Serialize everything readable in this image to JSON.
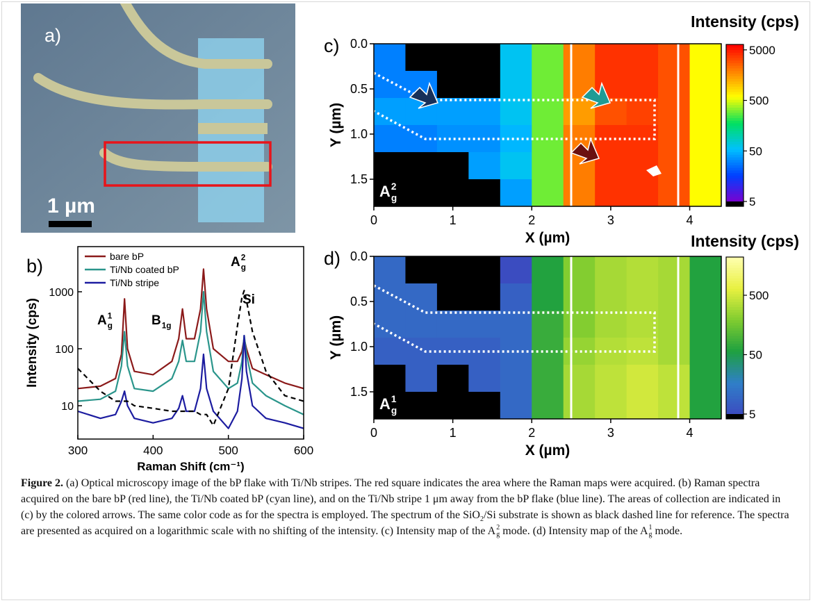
{
  "figure": {
    "panel_a": {
      "label": "a)",
      "scale_bar": "1 µm"
    },
    "caption": {
      "label": "Figure 2.",
      "segments": [
        {
          "text": " (a) Optical microscopy image of the bP flake with Ti/Nb stripes. The red square indicates the area where the Raman maps were acquired. (b) Raman spectra acquired on the bare bP (red line), the Ti/Nb coated bP (cyan line), and on the Ti/Nb stripe 1 μm away from the bP flake (blue line). The areas of collection are indicated in (c) by the colored arrows. The same color code as for the spectra is employed. The spectrum of the "
        },
        {
          "text": "SiO",
          "sub": "2"
        },
        {
          "text": "/Si substrate is shown as black dashed line for reference. The spectra are presented as acquired on a logarithmic scale with no shifting of the intensity. (c) Intensity map of the "
        },
        {
          "text": "A",
          "sub": "g",
          "sup": "2"
        },
        {
          "text": " mode. (d) Intensity map of the "
        },
        {
          "text": "A",
          "sub": "g",
          "sup": "1"
        },
        {
          "text": " mode."
        }
      ]
    }
  },
  "chart_data": [
    {
      "type": "line",
      "panel_label": "b)",
      "xlabel": "Raman Shift (cm⁻¹)",
      "ylabel": "Intensity (cps)",
      "log_y": true,
      "x": [
        300,
        330,
        350,
        358,
        362,
        366,
        375,
        400,
        425,
        434,
        439,
        444,
        455,
        463,
        467,
        471,
        480,
        500,
        512,
        518,
        521,
        524,
        532,
        550,
        575,
        600
      ],
      "series": [
        {
          "name": "bare bP",
          "color": "#8b1a1a",
          "values": [
            20,
            22,
            30,
            80,
            750,
            100,
            40,
            35,
            60,
            150,
            500,
            150,
            150,
            500,
            2500,
            500,
            100,
            60,
            60,
            90,
            150,
            100,
            45,
            35,
            25,
            20
          ]
        },
        {
          "name": "Ti/Nb coated bP",
          "color": "#2a958b",
          "values": [
            12,
            13,
            18,
            50,
            200,
            50,
            20,
            18,
            30,
            60,
            140,
            60,
            60,
            200,
            1000,
            200,
            40,
            20,
            25,
            60,
            170,
            80,
            25,
            15,
            10,
            7
          ]
        },
        {
          "name": "Ti/Nb stripe",
          "color": "#1c1ca0",
          "values": [
            8,
            6,
            7,
            12,
            18,
            10,
            6,
            5,
            6,
            9,
            15,
            8,
            8,
            20,
            80,
            20,
            8,
            4,
            8,
            30,
            170,
            40,
            10,
            6,
            5,
            4
          ]
        },
        {
          "color": "#000000",
          "dash": true,
          "values": [
            45,
            18,
            12,
            12,
            12,
            12,
            10,
            9,
            8,
            8,
            8,
            8,
            8,
            7,
            7,
            7,
            4.5,
            20,
            250,
            800,
            1050,
            700,
            200,
            40,
            15,
            12
          ]
        }
      ],
      "xlim": [
        300,
        600
      ],
      "ylim": [
        2.6,
        6200
      ],
      "xticks": [
        300,
        400,
        500,
        600
      ],
      "yticks": [
        10,
        100,
        1000
      ],
      "legend": "upper left",
      "annotations": [
        {
          "text": "A",
          "sub": "g",
          "sup": "1"
        },
        {
          "text": "B",
          "sub": "1g"
        },
        {
          "text": "A",
          "sub": "g",
          "sup": "2"
        },
        {
          "text": "Si"
        }
      ]
    },
    {
      "type": "heatmap",
      "panel_label": "c)",
      "xlabel": "X (µm)",
      "ylabel": "Y (µm)",
      "colorbar_label": "Intensity (cps)",
      "annotation": {
        "text": "A",
        "sub": "g",
        "sup": "2"
      },
      "x": [
        0.2,
        0.6,
        1.0,
        1.4,
        1.8,
        2.2,
        2.6,
        3.0,
        3.4,
        3.8,
        4.2
      ],
      "y": [
        0.15,
        0.45,
        0.75,
        1.05,
        1.35,
        1.65
      ],
      "values": [
        [
          30,
          2,
          2,
          2,
          60,
          300,
          2000,
          4000,
          4000,
          3000,
          600
        ],
        [
          30,
          30,
          2,
          2,
          60,
          300,
          2000,
          4000,
          4000,
          3000,
          600
        ],
        [
          40,
          40,
          40,
          40,
          60,
          300,
          1500,
          3000,
          3500,
          3000,
          600
        ],
        [
          30,
          30,
          35,
          35,
          50,
          300,
          2000,
          4000,
          4000,
          3000,
          600
        ],
        [
          2,
          2,
          2,
          40,
          60,
          300,
          2000,
          4000,
          4000,
          3000,
          600
        ],
        [
          2,
          2,
          2,
          2,
          40,
          300,
          2000,
          4000,
          4000,
          3000,
          600
        ]
      ],
      "xlim": [
        0,
        4.4
      ],
      "ylim": [
        1.8,
        0
      ],
      "xticks": [
        0,
        1,
        2,
        3,
        4
      ],
      "yticks": [
        {
          "value": 0,
          "label": "0.0"
        },
        0.5,
        {
          "value": 1,
          "label": "1.0"
        },
        1.5
      ],
      "clim": [
        5,
        6400
      ],
      "cticks": [
        5,
        50,
        500,
        5000
      ],
      "log_color": true,
      "colormap": [
        "#7a00d0",
        "#0040ff",
        "#00c0ff",
        "#00e060",
        "#ffff00",
        "#ff8000",
        "#ff0000"
      ],
      "below_color": "#000000"
    },
    {
      "type": "heatmap",
      "panel_label": "d)",
      "xlabel": "X (µm)",
      "ylabel": "Y (µm)",
      "colorbar_label": "Intensity (cps)",
      "annotation": {
        "text": "A",
        "sub": "g",
        "sup": "1"
      },
      "x": [
        0.2,
        0.6,
        1.0,
        1.4,
        1.8,
        2.2,
        2.6,
        3.0,
        3.4,
        3.8,
        4.2
      ],
      "y": [
        0.15,
        0.45,
        0.75,
        1.05,
        1.35,
        1.65
      ],
      "values": [
        [
          10,
          2,
          2,
          2,
          5,
          60,
          200,
          300,
          350,
          300,
          60
        ],
        [
          10,
          10,
          2,
          2,
          8,
          60,
          200,
          300,
          350,
          300,
          60
        ],
        [
          10,
          10,
          10,
          10,
          10,
          80,
          200,
          300,
          350,
          300,
          60
        ],
        [
          8,
          8,
          8,
          8,
          10,
          80,
          250,
          350,
          400,
          300,
          60
        ],
        [
          2,
          8,
          2,
          8,
          10,
          80,
          300,
          400,
          500,
          400,
          60
        ],
        [
          2,
          2,
          2,
          2,
          10,
          80,
          300,
          400,
          500,
          400,
          60
        ]
      ],
      "xlim": [
        0,
        4.4
      ],
      "ylim": [
        1.8,
        0
      ],
      "xticks": [
        0,
        1,
        2,
        3,
        4
      ],
      "yticks": [
        {
          "value": 0,
          "label": "0.0"
        },
        0.5,
        {
          "value": 1,
          "label": "1.0"
        },
        1.5
      ],
      "clim": [
        5,
        2200
      ],
      "cticks": [
        5,
        50,
        500
      ],
      "log_color": true,
      "colormap": [
        "#3b4cc0",
        "#2f7fc8",
        "#1ea040",
        "#80cc30",
        "#e8f040",
        "#ffffb0"
      ],
      "below_color": "#000000"
    }
  ]
}
